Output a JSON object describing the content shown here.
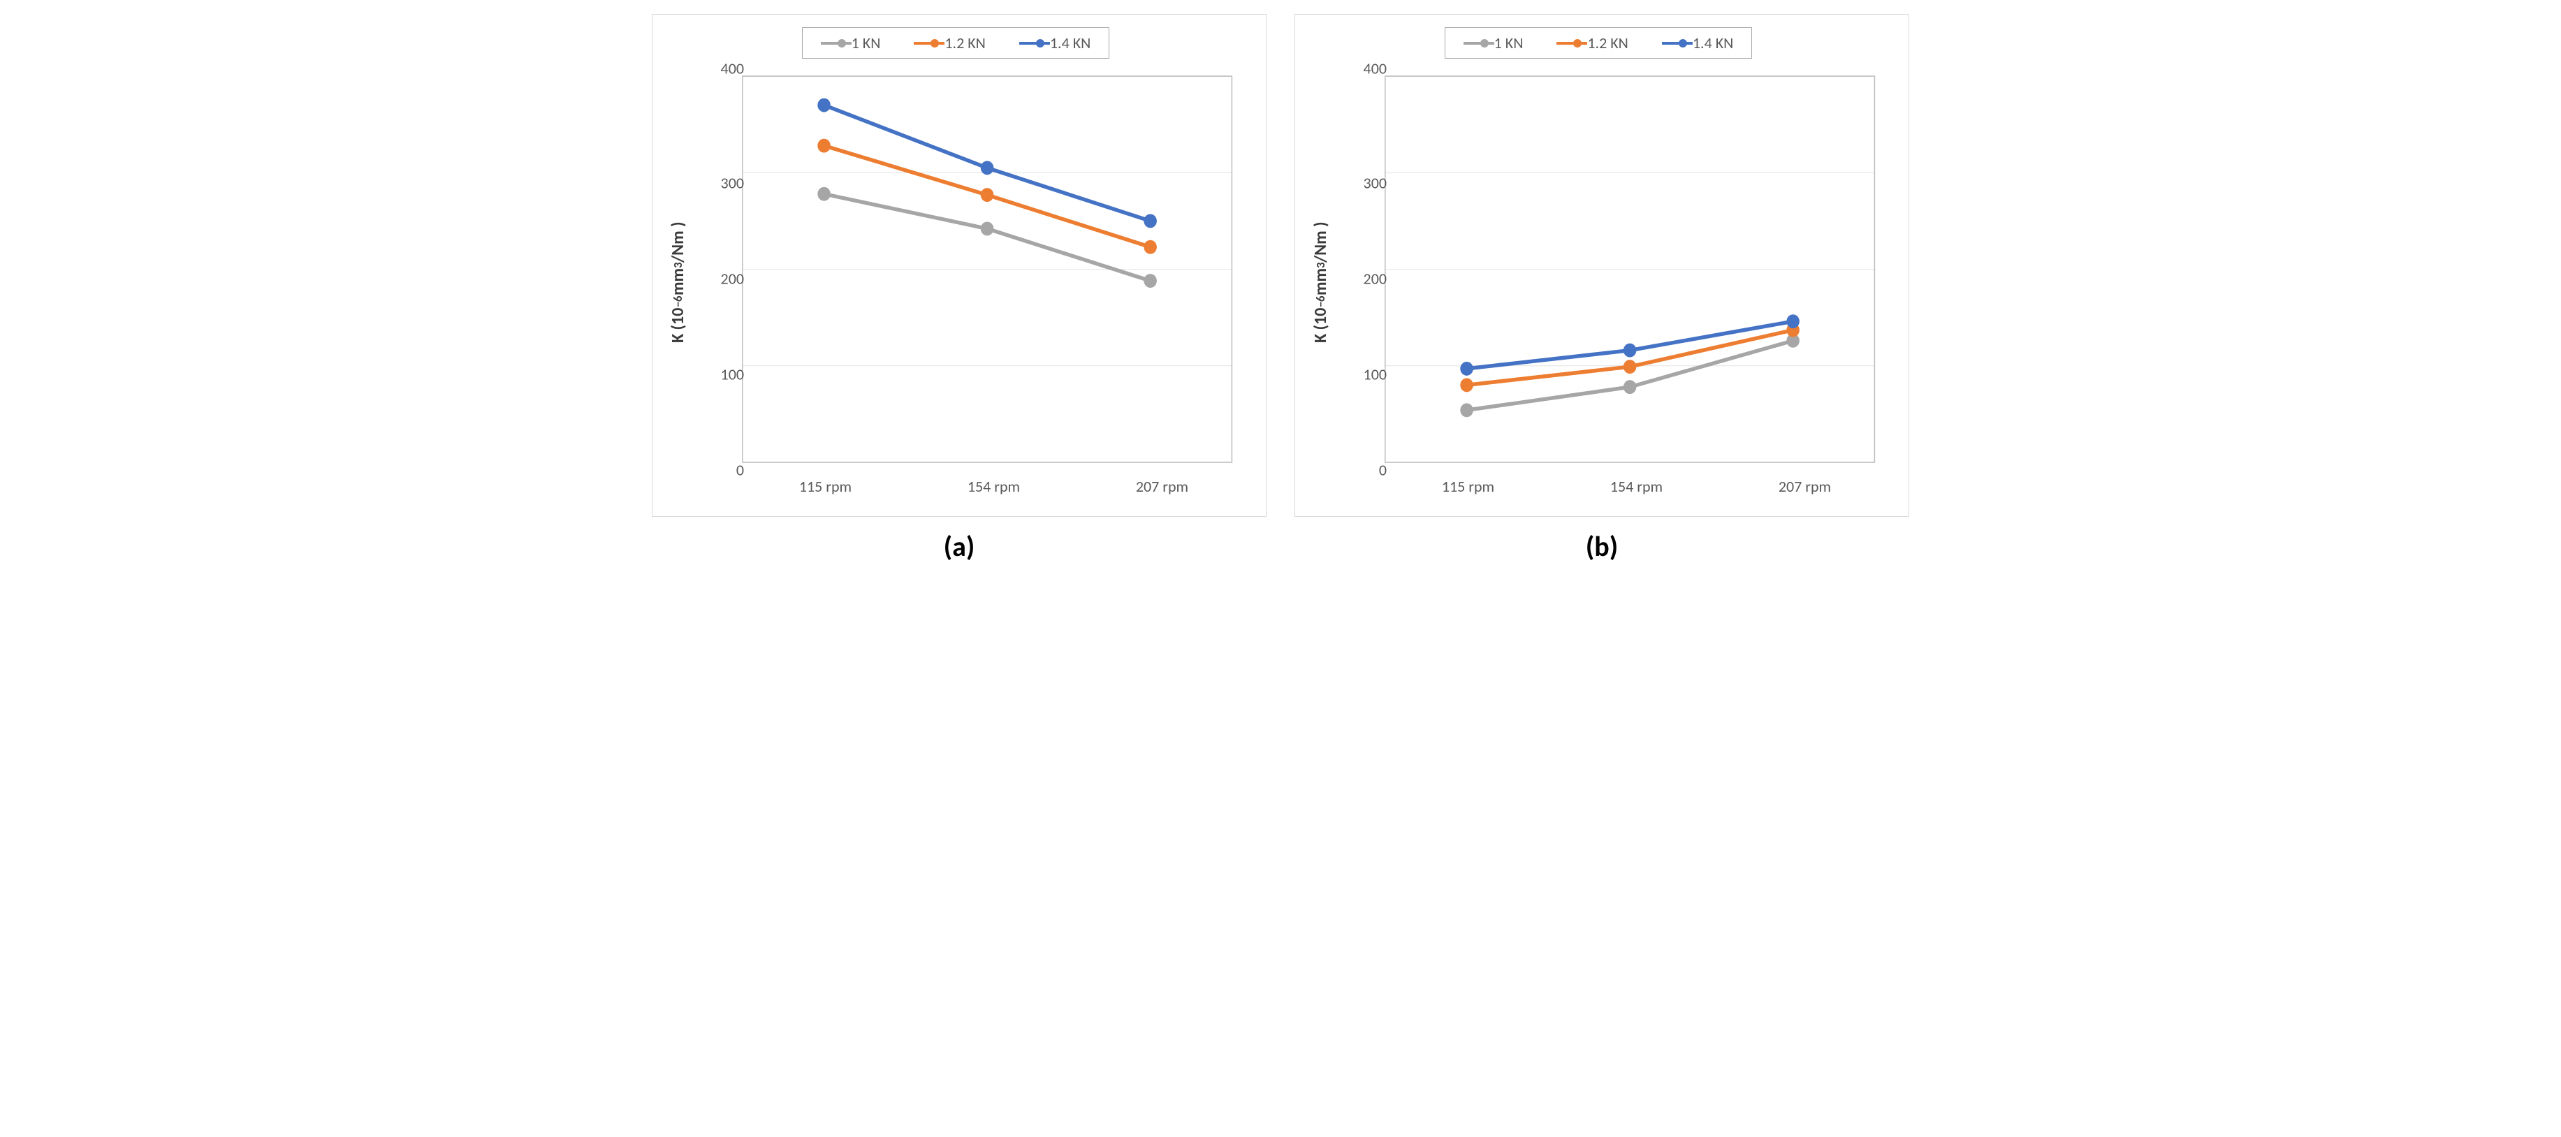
{
  "figure": {
    "panels": [
      {
        "caption": "(a)",
        "type": "line",
        "ylabel_html": "K (10<sup>−</sup><sup>6</sup> mm<sup>3</sup>/Nm )",
        "categories": [
          "115 rpm",
          "154 rpm",
          "207 rpm"
        ],
        "ylim": [
          0,
          400
        ],
        "ytick_step": 100,
        "grid_color": "#e6e6e6",
        "axis_color": "#bfbfbf",
        "background": "#ffffff",
        "panel_border": "#d9d9d9",
        "legend_border": "#a6a6a6",
        "label_color": "#595959",
        "label_fontsize": 22,
        "ylabel_fontsize": 24,
        "line_width": 5,
        "marker_radius": 9,
        "series": [
          {
            "name": "1 KN",
            "color": "#a6a6a6",
            "values": [
              278,
              242,
              188
            ]
          },
          {
            "name": "1.2 KN",
            "color": "#ed7d31",
            "values": [
              328,
              277,
              223
            ]
          },
          {
            "name": "1.4 KN",
            "color": "#4472c4",
            "values": [
              370,
              305,
              250
            ]
          }
        ]
      },
      {
        "caption": "(b)",
        "type": "line",
        "ylabel_html": "K (10<sup>−</sup><sup>6</sup> mm<sup>3</sup>/Nm )",
        "categories": [
          "115 rpm",
          "154 rpm",
          "207 rpm"
        ],
        "ylim": [
          0,
          400
        ],
        "ytick_step": 100,
        "grid_color": "#e6e6e6",
        "axis_color": "#bfbfbf",
        "background": "#ffffff",
        "panel_border": "#d9d9d9",
        "legend_border": "#a6a6a6",
        "label_color": "#595959",
        "label_fontsize": 22,
        "ylabel_fontsize": 24,
        "line_width": 5,
        "marker_radius": 9,
        "series": [
          {
            "name": "1 KN",
            "color": "#a6a6a6",
            "values": [
              54,
              78,
              126
            ]
          },
          {
            "name": "1.2 KN",
            "color": "#ed7d31",
            "values": [
              80,
              99,
              137
            ]
          },
          {
            "name": "1.4 KN",
            "color": "#4472c4",
            "values": [
              97,
              116,
              146
            ]
          }
        ]
      }
    ]
  }
}
